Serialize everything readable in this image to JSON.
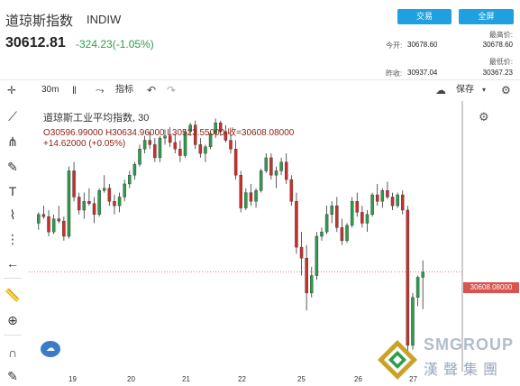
{
  "header": {
    "title": "道琼斯指数",
    "symbol": "INDIW",
    "trade_button": "交易",
    "fullscreen_button": "全屏",
    "price": "30612.81",
    "change": "-324.23(-1.05%)",
    "open_label": "今开:",
    "open_value": "30678.60",
    "prev_close_label": "昨收:",
    "prev_close_value": "30937.04",
    "high_label": "最高价:",
    "high_value": "30678.60",
    "low_label": "最低价:",
    "low_value": "30367.23"
  },
  "toolbar": {
    "interval": "30m",
    "indicators_label": "指标",
    "save_label": "保存"
  },
  "legend": {
    "title": "道琼斯工业平均指数, 30",
    "ohlc": "O30596.99000  H30634.96000  L30523.55000  收=30608.08000",
    "change": "+14.62000 (+0.05%)"
  },
  "price_tag": "30608.08000",
  "x_labels": [
    "19",
    "20",
    "21",
    "22",
    "25",
    "26",
    "27"
  ],
  "watermark": {
    "english": "SMGROUP",
    "chinese": "漢聲集團"
  },
  "colors": {
    "up": "#2e9c4a",
    "down": "#c9302c",
    "accent": "#1fa0e0"
  },
  "chart_data": {
    "type": "candlestick",
    "candles": [
      [
        30720,
        30745,
        30705,
        30740
      ],
      [
        30740,
        30760,
        30730,
        30735
      ],
      [
        30735,
        30750,
        30690,
        30700
      ],
      [
        30700,
        30740,
        30695,
        30730
      ],
      [
        30730,
        30760,
        30720,
        30725
      ],
      [
        30725,
        30735,
        30680,
        30690
      ],
      [
        30690,
        30850,
        30685,
        30840
      ],
      [
        30840,
        30860,
        30770,
        30780
      ],
      [
        30780,
        30790,
        30740,
        30750
      ],
      [
        30750,
        30790,
        30730,
        30770
      ],
      [
        30770,
        30800,
        30760,
        30765
      ],
      [
        30765,
        30780,
        30720,
        30740
      ],
      [
        30740,
        30800,
        30735,
        30795
      ],
      [
        30795,
        30830,
        30790,
        30800
      ],
      [
        30800,
        30810,
        30760,
        30770
      ],
      [
        30770,
        30785,
        30740,
        30760
      ],
      [
        30760,
        30790,
        30745,
        30780
      ],
      [
        30780,
        30820,
        30770,
        30810
      ],
      [
        30810,
        30840,
        30800,
        30830
      ],
      [
        30830,
        30860,
        30820,
        30855
      ],
      [
        30855,
        30900,
        30850,
        30890
      ],
      [
        30890,
        30920,
        30880,
        30910
      ],
      [
        30910,
        30930,
        30890,
        30900
      ],
      [
        30900,
        30915,
        30860,
        30870
      ],
      [
        30870,
        30920,
        30860,
        30915
      ],
      [
        30915,
        30935,
        30900,
        30920
      ],
      [
        30920,
        30940,
        30895,
        30905
      ],
      [
        30905,
        30925,
        30880,
        30890
      ],
      [
        30890,
        30910,
        30860,
        30875
      ],
      [
        30875,
        30935,
        30870,
        30930
      ],
      [
        30930,
        30950,
        30920,
        30945
      ],
      [
        30945,
        30955,
        30890,
        30900
      ],
      [
        30900,
        30915,
        30870,
        30880
      ],
      [
        30880,
        30900,
        30860,
        30895
      ],
      [
        30895,
        30930,
        30890,
        30925
      ],
      [
        30925,
        30960,
        30915,
        30950
      ],
      [
        30950,
        30955,
        30920,
        30930
      ],
      [
        30930,
        30945,
        30905,
        30910
      ],
      [
        30910,
        30925,
        30880,
        30890
      ],
      [
        30890,
        30910,
        30820,
        30830
      ],
      [
        30830,
        30840,
        30745,
        30755
      ],
      [
        30755,
        30800,
        30750,
        30790
      ],
      [
        30790,
        30810,
        30760,
        30770
      ],
      [
        30770,
        30800,
        30755,
        30795
      ],
      [
        30795,
        30845,
        30790,
        30840
      ],
      [
        30840,
        30880,
        30835,
        30870
      ],
      [
        30870,
        30880,
        30820,
        30830
      ],
      [
        30830,
        30850,
        30800,
        30840
      ],
      [
        30840,
        30870,
        30830,
        30860
      ],
      [
        30860,
        30880,
        30810,
        30820
      ],
      [
        30820,
        30830,
        30760,
        30770
      ],
      [
        30770,
        30790,
        30650,
        30665
      ],
      [
        30665,
        30700,
        30600,
        30640
      ],
      [
        30640,
        30670,
        30520,
        30560
      ],
      [
        30560,
        30620,
        30550,
        30600
      ],
      [
        30600,
        30700,
        30590,
        30690
      ],
      [
        30690,
        30710,
        30680,
        30700
      ],
      [
        30700,
        30760,
        30695,
        30740
      ],
      [
        30740,
        30770,
        30720,
        30760
      ],
      [
        30760,
        30780,
        30700,
        30710
      ],
      [
        30710,
        30730,
        30670,
        30680
      ],
      [
        30680,
        30720,
        30675,
        30715
      ],
      [
        30715,
        30780,
        30710,
        30770
      ],
      [
        30770,
        30790,
        30735,
        30745
      ],
      [
        30745,
        30760,
        30710,
        30720
      ],
      [
        30720,
        30750,
        30700,
        30740
      ],
      [
        30740,
        30790,
        30735,
        30785
      ],
      [
        30785,
        30810,
        30760,
        30770
      ],
      [
        30770,
        30800,
        30755,
        30795
      ],
      [
        30795,
        30815,
        30775,
        30780
      ],
      [
        30780,
        30790,
        30750,
        30760
      ],
      [
        30760,
        30790,
        30755,
        30785
      ],
      [
        30785,
        30795,
        30740,
        30750
      ],
      [
        30750,
        30760,
        30420,
        30440
      ],
      [
        30440,
        30560,
        30430,
        30550
      ],
      [
        30550,
        30600,
        30530,
        30596
      ],
      [
        30596,
        30635,
        30523,
        30608
      ]
    ],
    "ylim": [
      30380,
      31000
    ],
    "last_price": 30608.08
  }
}
